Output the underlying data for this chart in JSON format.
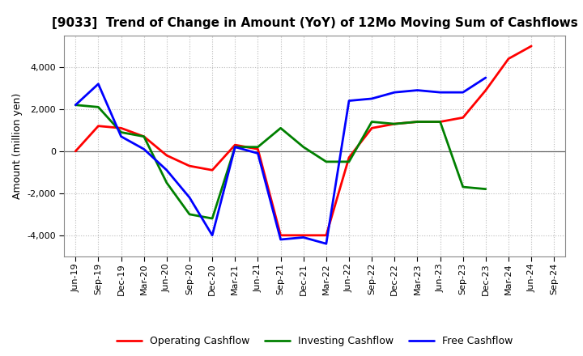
{
  "title": "[9033]  Trend of Change in Amount (YoY) of 12Mo Moving Sum of Cashflows",
  "ylabel": "Amount (million yen)",
  "x_labels": [
    "Jun-19",
    "Sep-19",
    "Dec-19",
    "Mar-20",
    "Jun-20",
    "Sep-20",
    "Dec-20",
    "Mar-21",
    "Jun-21",
    "Sep-21",
    "Dec-21",
    "Mar-22",
    "Jun-22",
    "Sep-22",
    "Dec-22",
    "Mar-23",
    "Jun-23",
    "Sep-23",
    "Dec-23",
    "Mar-24",
    "Jun-24",
    "Sep-24"
  ],
  "operating": [
    0,
    1200,
    1100,
    700,
    -200,
    -700,
    -900,
    300,
    100,
    -4000,
    -4000,
    -4000,
    -300,
    1100,
    1300,
    1400,
    1400,
    1600,
    2900,
    4400,
    5000,
    null
  ],
  "investing": [
    2200,
    2100,
    900,
    700,
    -1500,
    -3000,
    -3200,
    200,
    200,
    1100,
    200,
    -500,
    -500,
    1400,
    1300,
    1400,
    1400,
    -1700,
    -1800,
    null,
    null,
    null
  ],
  "free": [
    2200,
    3200,
    700,
    100,
    -900,
    -2200,
    -4000,
    200,
    -100,
    -4200,
    -4100,
    -4400,
    2400,
    2500,
    2800,
    2900,
    2800,
    2800,
    3500,
    null,
    null,
    null
  ],
  "operating_color": "#ff0000",
  "investing_color": "#008000",
  "free_color": "#0000ff",
  "ylim": [
    -5000,
    5500
  ],
  "yticks": [
    -4000,
    -2000,
    0,
    2000,
    4000
  ],
  "background_color": "#ffffff",
  "grid_color": "#bbbbbb",
  "line_width": 2.0,
  "legend_labels": [
    "Operating Cashflow",
    "Investing Cashflow",
    "Free Cashflow"
  ],
  "title_fontsize": 11,
  "ylabel_fontsize": 9,
  "tick_fontsize": 8
}
